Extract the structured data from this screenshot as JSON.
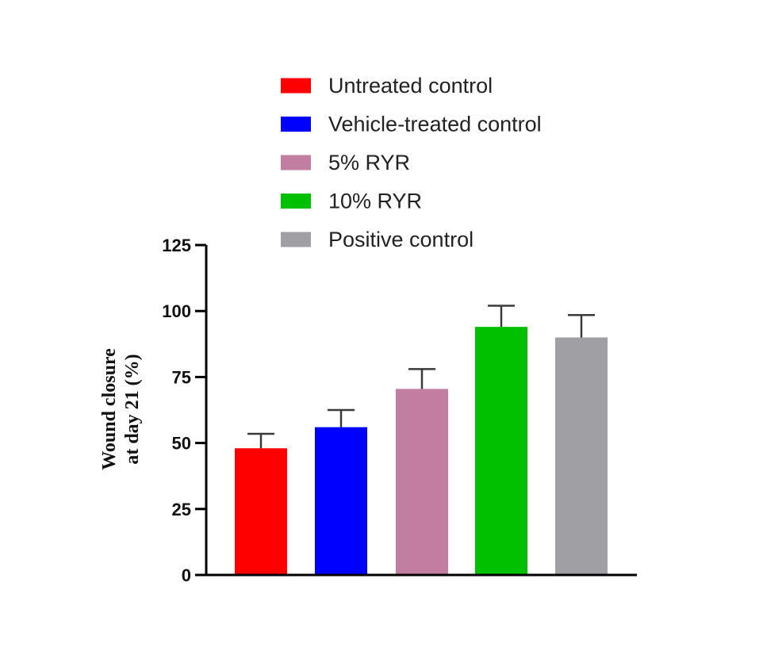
{
  "chart_data": {
    "type": "bar",
    "title": "",
    "xlabel": "",
    "ylabel": [
      "Wound closure",
      "at  day 21 (%)"
    ],
    "ylim": [
      0,
      125
    ],
    "yticks": [
      0,
      25,
      50,
      75,
      100,
      125
    ],
    "legend_position": "top",
    "grid": false,
    "categories": [
      "Untreated control",
      "Vehicle-treated control",
      "5% RYR",
      "10% RYR",
      "Positive control"
    ],
    "series": [
      {
        "values": [
          48,
          56,
          70.5,
          94,
          90
        ],
        "errors": [
          5.5,
          6.5,
          7.5,
          8,
          8.5
        ],
        "colors": [
          "#ff0000",
          "#0000ff",
          "#c27ea0",
          "#00c000",
          "#a0a0a4"
        ]
      }
    ],
    "legend": [
      {
        "label": "Untreated control",
        "color": "#ff0000"
      },
      {
        "label": "Vehicle-treated control",
        "color": "#0000ff"
      },
      {
        "label": "5% RYR",
        "color": "#c27ea0"
      },
      {
        "label": "10% RYR",
        "color": "#00c000"
      },
      {
        "label": "Positive control",
        "color": "#a0a0a4"
      }
    ]
  }
}
